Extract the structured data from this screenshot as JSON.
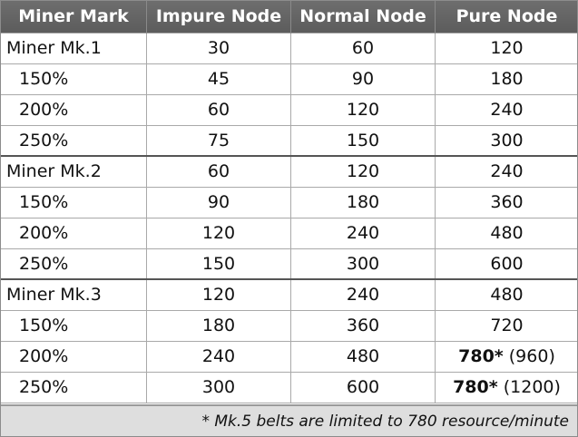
{
  "headers": [
    "Miner Mark",
    "Impure Node",
    "Normal Node",
    "Pure Node"
  ],
  "groups": [
    {
      "rows": [
        {
          "mark": "Miner Mk.1",
          "impure": "30",
          "normal": "60",
          "pure_main": "",
          "pure_text": "120"
        },
        {
          "mark": "150%",
          "impure": "45",
          "normal": "90",
          "pure_main": "",
          "pure_text": "180"
        },
        {
          "mark": "200%",
          "impure": "60",
          "normal": "120",
          "pure_main": "",
          "pure_text": "240"
        },
        {
          "mark": "250%",
          "impure": "75",
          "normal": "150",
          "pure_main": "",
          "pure_text": "300"
        }
      ]
    },
    {
      "rows": [
        {
          "mark": "Miner Mk.2",
          "impure": "60",
          "normal": "120",
          "pure_main": "",
          "pure_text": "240"
        },
        {
          "mark": "150%",
          "impure": "90",
          "normal": "180",
          "pure_main": "",
          "pure_text": "360"
        },
        {
          "mark": "200%",
          "impure": "120",
          "normal": "240",
          "pure_main": "",
          "pure_text": "480"
        },
        {
          "mark": "250%",
          "impure": "150",
          "normal": "300",
          "pure_main": "",
          "pure_text": "600"
        }
      ]
    },
    {
      "rows": [
        {
          "mark": "Miner Mk.3",
          "impure": "120",
          "normal": "240",
          "pure_main": "",
          "pure_text": "480"
        },
        {
          "mark": "150%",
          "impure": "180",
          "normal": "360",
          "pure_main": "",
          "pure_text": "720"
        },
        {
          "mark": "200%",
          "impure": "240",
          "normal": "480",
          "pure_main": "780*",
          "pure_text": " (960)"
        },
        {
          "mark": "250%",
          "impure": "300",
          "normal": "600",
          "pure_main": "780*",
          "pure_text": " (1200)"
        }
      ]
    }
  ],
  "footnote": "* Mk.5 belts are limited to 780 resource/minute",
  "colors": {
    "header_bg": "#636363",
    "header_text": "#ffffff",
    "footer_bg": "#dedede",
    "grid": "#a9a9a9"
  }
}
